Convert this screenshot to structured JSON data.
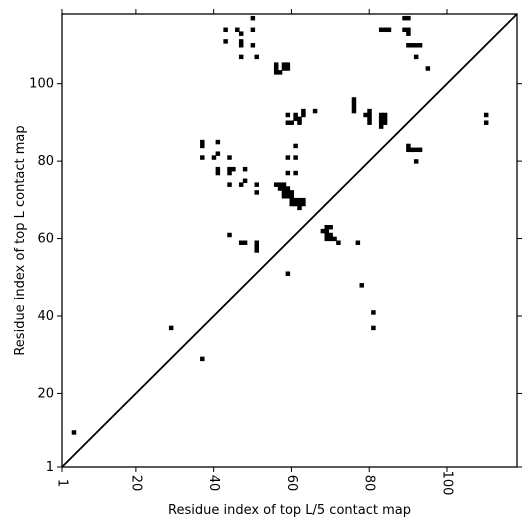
{
  "chart_data": {
    "type": "scatter",
    "xlabel": "Residue index of top L/5 contact map",
    "ylabel": "Residue index of top L contact map",
    "xlim": [
      1,
      118
    ],
    "ylim": [
      1,
      118
    ],
    "xticks": [
      1,
      20,
      40,
      60,
      80,
      100
    ],
    "yticks": [
      1,
      20,
      40,
      60,
      80,
      100
    ],
    "x_tick_labels_rotated": true,
    "marker": "square",
    "color": "#000000",
    "diagonal": {
      "from": [
        1,
        1
      ],
      "to": [
        118,
        118
      ],
      "color": "#000000"
    },
    "points": [
      [
        4,
        10
      ],
      [
        29,
        37
      ],
      [
        37,
        29
      ],
      [
        37,
        81
      ],
      [
        37,
        84
      ],
      [
        37,
        85
      ],
      [
        40,
        81
      ],
      [
        41,
        82
      ],
      [
        41,
        85
      ],
      [
        41,
        77
      ],
      [
        41,
        78
      ],
      [
        44,
        81
      ],
      [
        44,
        78
      ],
      [
        44,
        77
      ],
      [
        44,
        74
      ],
      [
        45,
        78
      ],
      [
        47,
        74
      ],
      [
        48,
        75
      ],
      [
        48,
        78
      ],
      [
        51,
        74
      ],
      [
        51,
        72
      ],
      [
        44,
        61
      ],
      [
        47,
        59
      ],
      [
        48,
        59
      ],
      [
        51,
        59
      ],
      [
        51,
        58
      ],
      [
        51,
        57
      ],
      [
        43,
        114
      ],
      [
        43,
        111
      ],
      [
        46,
        114
      ],
      [
        47,
        113
      ],
      [
        47,
        111
      ],
      [
        47,
        110
      ],
      [
        47,
        107
      ],
      [
        50,
        117
      ],
      [
        50,
        114
      ],
      [
        50,
        110
      ],
      [
        51,
        107
      ],
      [
        56,
        105
      ],
      [
        56,
        104
      ],
      [
        56,
        103
      ],
      [
        57,
        103
      ],
      [
        58,
        104
      ],
      [
        58,
        105
      ],
      [
        59,
        104
      ],
      [
        59,
        105
      ],
      [
        59,
        92
      ],
      [
        59,
        90
      ],
      [
        60,
        90
      ],
      [
        61,
        91
      ],
      [
        61,
        92
      ],
      [
        62,
        91
      ],
      [
        62,
        90
      ],
      [
        63,
        92
      ],
      [
        63,
        93
      ],
      [
        66,
        93
      ],
      [
        61,
        84
      ],
      [
        59,
        81
      ],
      [
        61,
        81
      ],
      [
        59,
        77
      ],
      [
        61,
        77
      ],
      [
        56,
        74
      ],
      [
        57,
        74
      ],
      [
        58,
        74
      ],
      [
        57,
        73
      ],
      [
        58,
        73
      ],
      [
        59,
        73
      ],
      [
        58,
        72
      ],
      [
        59,
        72
      ],
      [
        60,
        72
      ],
      [
        58,
        71
      ],
      [
        59,
        71
      ],
      [
        60,
        71
      ],
      [
        60,
        70
      ],
      [
        61,
        70
      ],
      [
        62,
        70
      ],
      [
        63,
        70
      ],
      [
        60,
        69
      ],
      [
        61,
        69
      ],
      [
        62,
        69
      ],
      [
        63,
        69
      ],
      [
        62,
        68
      ],
      [
        59,
        51
      ],
      [
        68,
        62
      ],
      [
        69,
        63
      ],
      [
        70,
        63
      ],
      [
        69,
        62
      ],
      [
        69,
        61
      ],
      [
        70,
        61
      ],
      [
        69,
        60
      ],
      [
        70,
        60
      ],
      [
        71,
        60
      ],
      [
        72,
        59
      ],
      [
        77,
        59
      ],
      [
        78,
        48
      ],
      [
        81,
        41
      ],
      [
        81,
        37
      ],
      [
        76,
        96
      ],
      [
        76,
        95
      ],
      [
        76,
        94
      ],
      [
        76,
        93
      ],
      [
        79,
        92
      ],
      [
        80,
        93
      ],
      [
        80,
        92
      ],
      [
        80,
        91
      ],
      [
        80,
        90
      ],
      [
        83,
        92
      ],
      [
        84,
        92
      ],
      [
        83,
        91
      ],
      [
        84,
        91
      ],
      [
        83,
        90
      ],
      [
        84,
        90
      ],
      [
        83,
        89
      ],
      [
        83,
        114
      ],
      [
        84,
        114
      ],
      [
        85,
        114
      ],
      [
        89,
        117
      ],
      [
        90,
        117
      ],
      [
        89,
        114
      ],
      [
        90,
        114
      ],
      [
        90,
        113
      ],
      [
        90,
        110
      ],
      [
        91,
        110
      ],
      [
        92,
        110
      ],
      [
        93,
        110
      ],
      [
        92,
        107
      ],
      [
        95,
        104
      ],
      [
        90,
        84
      ],
      [
        90,
        83
      ],
      [
        91,
        83
      ],
      [
        92,
        83
      ],
      [
        93,
        83
      ],
      [
        92,
        80
      ],
      [
        110,
        92
      ],
      [
        110,
        90
      ]
    ]
  }
}
